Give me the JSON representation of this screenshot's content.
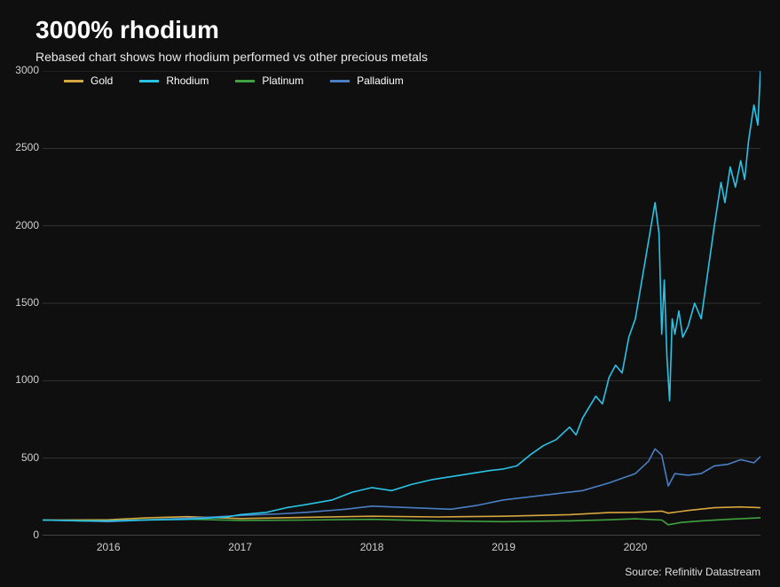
{
  "title": "3000% rhodium",
  "subtitle": "Rebased chart shows how rhodium performed vs other precious metals",
  "source": "Source: Refinitiv Datastream",
  "background_color": "#0f0f0f",
  "grid_color": "#333333",
  "axis_color": "#777777",
  "text_color": "#cfcfcf",
  "title_fontsize": 28,
  "subtitle_fontsize": 14,
  "label_fontsize": 12,
  "chart": {
    "type": "line",
    "x_min": 2015.5,
    "x_max": 2020.95,
    "x_ticks": [
      2016,
      2017,
      2018,
      2019,
      2020
    ],
    "y_min": 0,
    "y_max": 3000,
    "y_ticks": [
      0,
      500,
      1000,
      1500,
      2000,
      2500,
      3000
    ],
    "line_width": 1.6,
    "legend": [
      {
        "label": "Gold",
        "color": "#d8a63e"
      },
      {
        "label": "Rhodium",
        "color": "#29c3e6"
      },
      {
        "label": "Platinum",
        "color": "#3fa13f"
      },
      {
        "label": "Palladium",
        "color": "#4a7fc4"
      }
    ],
    "series": {
      "gold": {
        "color": "#d8a63e",
        "points": [
          [
            2015.5,
            100
          ],
          [
            2016.0,
            102
          ],
          [
            2016.3,
            115
          ],
          [
            2016.6,
            122
          ],
          [
            2017.0,
            110
          ],
          [
            2017.5,
            118
          ],
          [
            2018.0,
            125
          ],
          [
            2018.5,
            120
          ],
          [
            2019.0,
            125
          ],
          [
            2019.5,
            135
          ],
          [
            2019.8,
            148
          ],
          [
            2020.0,
            150
          ],
          [
            2020.2,
            158
          ],
          [
            2020.25,
            145
          ],
          [
            2020.4,
            162
          ],
          [
            2020.6,
            180
          ],
          [
            2020.8,
            185
          ],
          [
            2020.95,
            180
          ]
        ]
      },
      "platinum": {
        "color": "#3fa13f",
        "points": [
          [
            2015.5,
            100
          ],
          [
            2016.0,
            95
          ],
          [
            2016.5,
            108
          ],
          [
            2017.0,
            98
          ],
          [
            2017.5,
            100
          ],
          [
            2018.0,
            105
          ],
          [
            2018.5,
            95
          ],
          [
            2019.0,
            90
          ],
          [
            2019.5,
            95
          ],
          [
            2019.8,
            102
          ],
          [
            2020.0,
            108
          ],
          [
            2020.2,
            100
          ],
          [
            2020.25,
            70
          ],
          [
            2020.35,
            85
          ],
          [
            2020.5,
            95
          ],
          [
            2020.7,
            105
          ],
          [
            2020.95,
            115
          ]
        ]
      },
      "palladium": {
        "color": "#4a7fc4",
        "points": [
          [
            2015.5,
            100
          ],
          [
            2015.8,
            95
          ],
          [
            2016.0,
            90
          ],
          [
            2016.4,
            105
          ],
          [
            2016.8,
            120
          ],
          [
            2017.0,
            130
          ],
          [
            2017.3,
            140
          ],
          [
            2017.5,
            150
          ],
          [
            2017.8,
            170
          ],
          [
            2018.0,
            190
          ],
          [
            2018.3,
            180
          ],
          [
            2018.6,
            170
          ],
          [
            2018.8,
            195
          ],
          [
            2019.0,
            230
          ],
          [
            2019.2,
            250
          ],
          [
            2019.4,
            270
          ],
          [
            2019.6,
            290
          ],
          [
            2019.8,
            340
          ],
          [
            2019.9,
            370
          ],
          [
            2020.0,
            400
          ],
          [
            2020.1,
            480
          ],
          [
            2020.15,
            560
          ],
          [
            2020.2,
            520
          ],
          [
            2020.25,
            320
          ],
          [
            2020.3,
            400
          ],
          [
            2020.4,
            390
          ],
          [
            2020.5,
            400
          ],
          [
            2020.6,
            450
          ],
          [
            2020.7,
            460
          ],
          [
            2020.8,
            490
          ],
          [
            2020.9,
            470
          ],
          [
            2020.95,
            510
          ]
        ]
      },
      "rhodium": {
        "color": "#29c3e6",
        "points": [
          [
            2015.5,
            100
          ],
          [
            2015.8,
            95
          ],
          [
            2016.0,
            95
          ],
          [
            2016.3,
            100
          ],
          [
            2016.6,
            105
          ],
          [
            2016.9,
            120
          ],
          [
            2017.0,
            135
          ],
          [
            2017.2,
            150
          ],
          [
            2017.35,
            180
          ],
          [
            2017.5,
            200
          ],
          [
            2017.7,
            230
          ],
          [
            2017.85,
            280
          ],
          [
            2018.0,
            310
          ],
          [
            2018.15,
            290
          ],
          [
            2018.3,
            330
          ],
          [
            2018.45,
            360
          ],
          [
            2018.6,
            380
          ],
          [
            2018.75,
            400
          ],
          [
            2018.9,
            420
          ],
          [
            2019.0,
            430
          ],
          [
            2019.1,
            450
          ],
          [
            2019.2,
            520
          ],
          [
            2019.3,
            580
          ],
          [
            2019.4,
            620
          ],
          [
            2019.5,
            700
          ],
          [
            2019.55,
            650
          ],
          [
            2019.6,
            760
          ],
          [
            2019.7,
            900
          ],
          [
            2019.75,
            850
          ],
          [
            2019.8,
            1020
          ],
          [
            2019.85,
            1100
          ],
          [
            2019.9,
            1050
          ],
          [
            2019.95,
            1280
          ],
          [
            2020.0,
            1400
          ],
          [
            2020.05,
            1650
          ],
          [
            2020.1,
            1900
          ],
          [
            2020.15,
            2150
          ],
          [
            2020.18,
            1950
          ],
          [
            2020.2,
            1300
          ],
          [
            2020.22,
            1650
          ],
          [
            2020.24,
            1150
          ],
          [
            2020.26,
            870
          ],
          [
            2020.28,
            1400
          ],
          [
            2020.3,
            1300
          ],
          [
            2020.33,
            1450
          ],
          [
            2020.36,
            1280
          ],
          [
            2020.4,
            1350
          ],
          [
            2020.45,
            1500
          ],
          [
            2020.5,
            1400
          ],
          [
            2020.55,
            1700
          ],
          [
            2020.6,
            2000
          ],
          [
            2020.65,
            2280
          ],
          [
            2020.68,
            2150
          ],
          [
            2020.72,
            2380
          ],
          [
            2020.76,
            2250
          ],
          [
            2020.8,
            2420
          ],
          [
            2020.83,
            2300
          ],
          [
            2020.86,
            2550
          ],
          [
            2020.9,
            2780
          ],
          [
            2020.93,
            2650
          ],
          [
            2020.95,
            3000
          ]
        ]
      }
    }
  }
}
